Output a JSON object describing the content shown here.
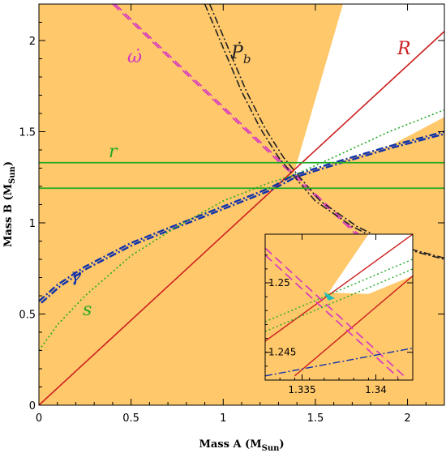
{
  "colors": {
    "allowed_region": "#ffc86b",
    "background": "#ffffff",
    "R": "#cc1f1f",
    "omegadot": "#d633c4",
    "Pbdot": "#222222",
    "gamma": "#1133aa",
    "s": "#22aa22",
    "r": "#22aa22",
    "marker": "#22bbbb"
  },
  "chart_data": [
    {
      "type": "line",
      "xlabel_main": "Mass A (M",
      "xlabel_sub": "Sun",
      "xlabel_tail": ")",
      "ylabel_main": "Mass B (M",
      "ylabel_sub": "Sun",
      "ylabel_tail": ")",
      "xlim": [
        0,
        2.2
      ],
      "ylim": [
        0,
        2.2
      ],
      "xticks": [
        0,
        0.5,
        1,
        1.5,
        2
      ],
      "yticks": [
        0,
        0.5,
        1,
        1.5,
        2
      ],
      "xtick_labels": [
        "0",
        "0.5",
        "1",
        "1.5",
        "2"
      ],
      "ytick_labels": [
        "0",
        "0.5",
        "1",
        "1.5",
        "2"
      ],
      "grid": false,
      "shading": "orange region excluded, white wedge allowed",
      "series": [
        {
          "name": "R",
          "style": "solid",
          "x": [
            0,
            2.2
          ],
          "y": [
            0,
            2.05
          ]
        },
        {
          "name": "ω̇",
          "style": "dashed",
          "x": [
            0.4,
            1.38,
            1.95
          ],
          "y": [
            2.2,
            1.26,
            0.72
          ]
        },
        {
          "name": "Ṗb",
          "style": "dash-dot",
          "x": [
            0.9,
            1.1,
            1.2,
            1.3,
            1.38,
            1.5,
            1.7,
            1.9,
            2.2
          ],
          "y": [
            2.2,
            1.72,
            1.52,
            1.36,
            1.26,
            1.12,
            0.98,
            0.88,
            0.8
          ]
        },
        {
          "name": "γ",
          "style": "dash-dot",
          "x": [
            0,
            0.1,
            0.25,
            0.5,
            0.75,
            1.0,
            1.25,
            1.38,
            1.6,
            1.9,
            2.2
          ],
          "y": [
            0.57,
            0.66,
            0.76,
            0.89,
            0.99,
            1.09,
            1.19,
            1.26,
            1.33,
            1.42,
            1.5
          ]
        },
        {
          "name": "s",
          "style": "dotted",
          "x": [
            0,
            0.1,
            0.25,
            0.5,
            0.75,
            1.0,
            1.25,
            1.38,
            1.6,
            1.9,
            2.2
          ],
          "y": [
            0.3,
            0.44,
            0.6,
            0.82,
            0.98,
            1.12,
            1.22,
            1.26,
            1.36,
            1.5,
            1.62
          ]
        },
        {
          "name": "r_upper",
          "style": "solid",
          "x": [
            0,
            2.2
          ],
          "y": [
            1.33,
            1.33
          ]
        },
        {
          "name": "r_lower",
          "style": "solid",
          "x": [
            0,
            2.2
          ],
          "y": [
            1.19,
            1.19
          ]
        }
      ],
      "labels": {
        "R": "R",
        "omegadot": "ω̇",
        "Pbdot": "Ṗ",
        "Pbdot_sub": "b",
        "gamma": "γ",
        "s": "s",
        "r": "r"
      }
    },
    {
      "type": "line",
      "inset": true,
      "xlim": [
        1.3325,
        1.3425
      ],
      "ylim": [
        1.243,
        1.2535
      ],
      "xticks": [
        1.335,
        1.34
      ],
      "yticks": [
        1.245,
        1.25
      ],
      "xtick_labels": [
        "1.335",
        "1.34"
      ],
      "ytick_labels": [
        "1.245",
        "1.25"
      ]
    }
  ]
}
